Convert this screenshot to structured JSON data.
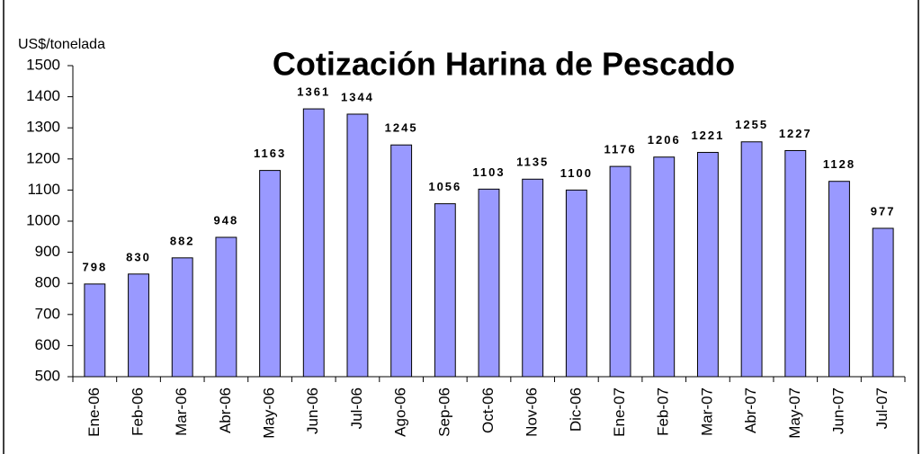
{
  "chart_data": {
    "type": "bar",
    "title": "Cotización Harina de Pescado",
    "y_label": "US$/tonelada",
    "categories": [
      "Ene-06",
      "Feb-06",
      "Mar-06",
      "Abr-06",
      "May-06",
      "Jun-06",
      "Jul-06",
      "Ago-06",
      "Sep-06",
      "Oct-06",
      "Nov-06",
      "Dic-06",
      "Ene-07",
      "Feb-07",
      "Mar-07",
      "Abr-07",
      "May-07",
      "Jun-07",
      "Jul-07"
    ],
    "values": [
      798,
      830,
      882,
      948,
      1163,
      1361,
      1344,
      1245,
      1056,
      1103,
      1135,
      1100,
      1176,
      1206,
      1221,
      1255,
      1227,
      1128,
      977
    ],
    "color": "#9999ff",
    "ylim": [
      500,
      1500
    ],
    "yticks": [
      500,
      600,
      700,
      800,
      900,
      1000,
      1100,
      1200,
      1300,
      1400,
      1500
    ],
    "grid": false
  }
}
